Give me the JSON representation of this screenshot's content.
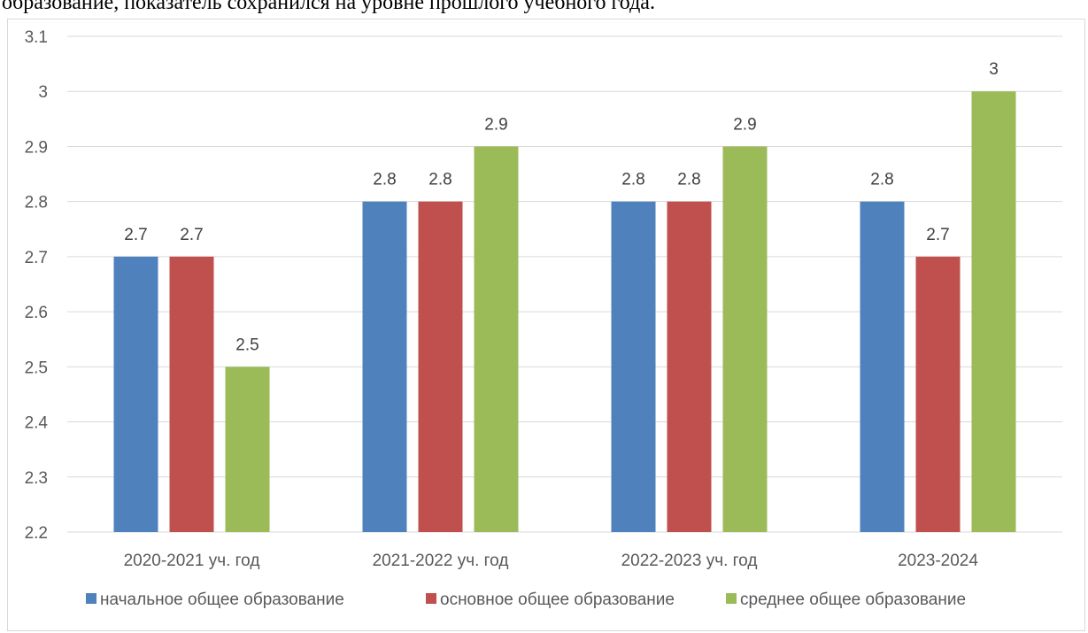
{
  "document": {
    "caption": "образование, показатель сохранился на уровне прошлого учебного года."
  },
  "chart_data": {
    "type": "bar",
    "title": "",
    "xlabel": "",
    "ylabel": "",
    "ylim": [
      2.2,
      3.1
    ],
    "yticks": [
      "3.1",
      "3",
      "2.9",
      "2.8",
      "2.7",
      "2.6",
      "2.5",
      "2.4",
      "2.3",
      "2.2"
    ],
    "grid": true,
    "legend_position": "bottom",
    "categories": [
      "2020-2021 уч. год",
      "2021-2022 уч. год",
      "2022-2023 уч. год",
      "2023-2024"
    ],
    "series": [
      {
        "name": "начальное общее образование",
        "color": "#4f81bd",
        "values": [
          2.7,
          2.8,
          2.8,
          2.8
        ],
        "labels": [
          "2.7",
          "2.8",
          "2.8",
          "2.8"
        ]
      },
      {
        "name": "основное общее образование",
        "color": "#c0504d",
        "values": [
          2.7,
          2.8,
          2.8,
          2.7
        ],
        "labels": [
          "2.7",
          "2.8",
          "2.8",
          "2.7"
        ]
      },
      {
        "name": "среднее общее образование",
        "color": "#9bbb59",
        "values": [
          2.5,
          2.9,
          2.9,
          3.0
        ],
        "labels": [
          "2.5",
          "2.9",
          "2.9",
          "3"
        ]
      }
    ]
  }
}
